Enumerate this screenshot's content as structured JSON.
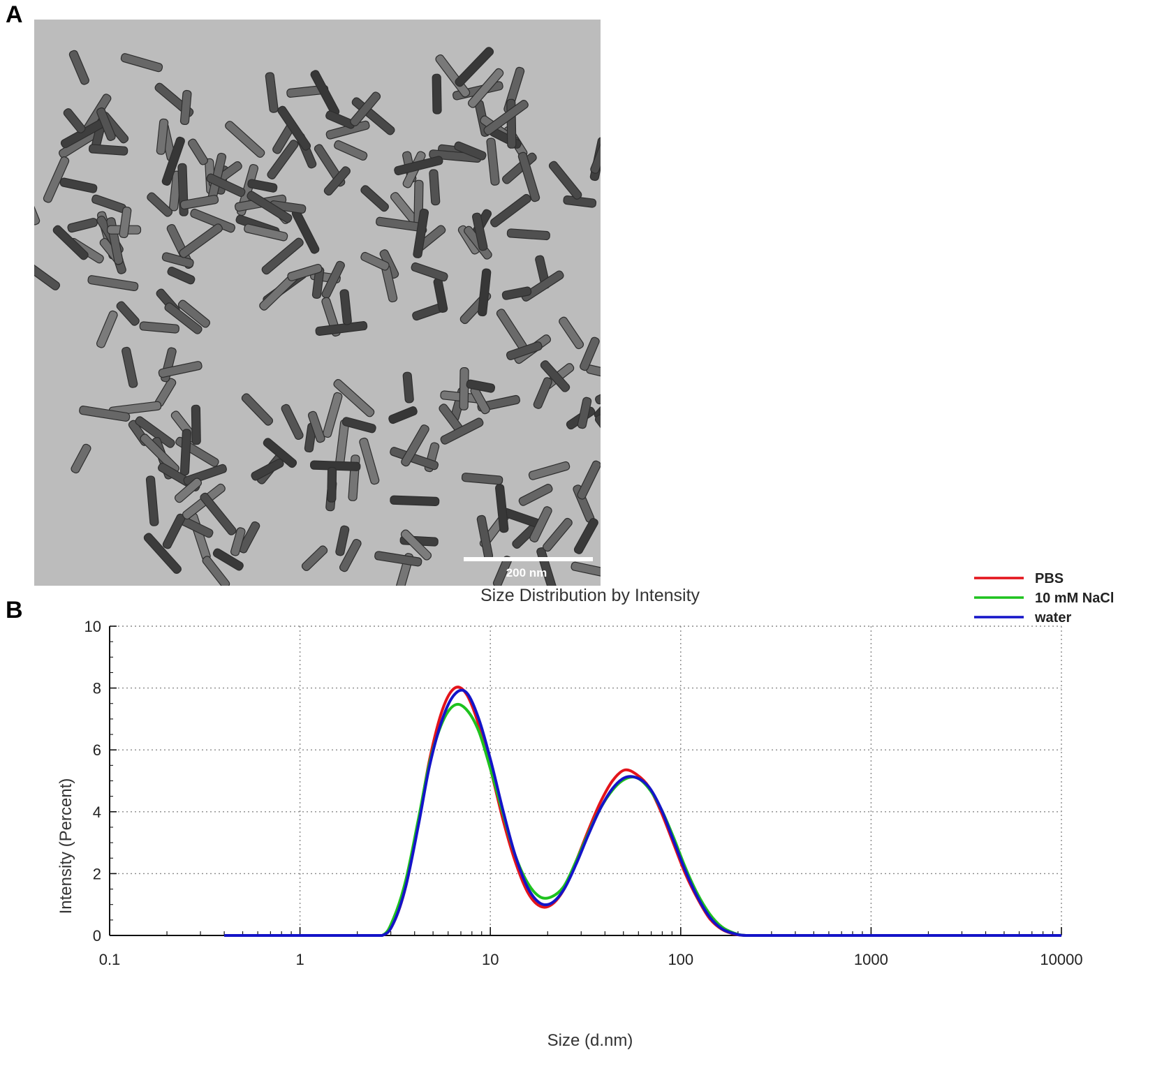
{
  "panels": {
    "a_label": "A",
    "b_label": "B"
  },
  "tem_image": {
    "scale_bar_label": "200 nm",
    "background_color": "#bcbcbc",
    "particle_color": "#4a4a4a"
  },
  "chart_data": {
    "type": "line",
    "title": "Size Distribution by Intensity",
    "xlabel": "Size (d.nm)",
    "ylabel": "Intensity (Percent)",
    "xscale": "log",
    "xlim": [
      0.1,
      10000
    ],
    "ylim": [
      0,
      10
    ],
    "xticks": [
      0.1,
      1,
      10,
      100,
      1000,
      10000
    ],
    "xtick_labels": [
      "0.1",
      "1",
      "10",
      "100",
      "1000",
      "10000"
    ],
    "yticks": [
      0,
      2,
      4,
      6,
      8,
      10
    ],
    "ytick_labels": [
      "0",
      "2",
      "4",
      "6",
      "8",
      "10"
    ],
    "grid": true,
    "legend_position": "top-right",
    "series": [
      {
        "name": "PBS",
        "color": "#e3141b",
        "x": [
          0.4,
          1,
          2,
          2.7,
          3.1,
          3.6,
          4.2,
          4.8,
          5.6,
          6.5,
          7.5,
          8.7,
          10.1,
          11.7,
          13.5,
          15.7,
          18.2,
          21,
          24.4,
          28.2,
          32.7,
          37.8,
          43.8,
          50.7,
          58.8,
          68.1,
          78.8,
          91.3,
          105.7,
          122.4,
          141.8,
          164.2,
          190.1,
          220,
          300,
          1000,
          10000
        ],
        "y": [
          0,
          0,
          0,
          0,
          0.4,
          1.6,
          3.7,
          5.7,
          7.3,
          8.0,
          7.8,
          6.8,
          5.3,
          3.7,
          2.4,
          1.4,
          0.95,
          1.0,
          1.5,
          2.4,
          3.4,
          4.3,
          5.0,
          5.35,
          5.2,
          4.8,
          4.0,
          3.0,
          2.0,
          1.2,
          0.55,
          0.2,
          0.05,
          0,
          0,
          0,
          0
        ]
      },
      {
        "name": "10 mM NaCl",
        "color": "#1ec21e",
        "x": [
          0.4,
          1,
          2,
          2.7,
          3.1,
          3.6,
          4.2,
          4.8,
          5.6,
          6.5,
          7.5,
          8.7,
          10.1,
          11.7,
          13.5,
          15.7,
          18.2,
          21,
          24.4,
          28.2,
          32.7,
          37.8,
          43.8,
          50.7,
          58.8,
          68.1,
          78.8,
          91.3,
          105.7,
          122.4,
          141.8,
          164.2,
          190.1,
          220,
          300,
          1000,
          10000
        ],
        "y": [
          0,
          0,
          0,
          0,
          0.55,
          1.8,
          3.8,
          5.6,
          6.9,
          7.45,
          7.3,
          6.6,
          5.3,
          3.9,
          2.6,
          1.7,
          1.25,
          1.25,
          1.6,
          2.4,
          3.3,
          4.1,
          4.7,
          5.05,
          5.1,
          4.75,
          4.1,
          3.2,
          2.2,
          1.35,
          0.7,
          0.28,
          0.08,
          0,
          0,
          0,
          0
        ]
      },
      {
        "name": "water",
        "color": "#1414c8",
        "x": [
          0.4,
          1,
          2,
          2.7,
          3.1,
          3.6,
          4.2,
          4.8,
          5.6,
          6.5,
          7.5,
          8.7,
          10.1,
          11.7,
          13.5,
          15.7,
          18.2,
          21,
          24.4,
          28.2,
          32.7,
          37.8,
          43.8,
          50.7,
          58.8,
          68.1,
          78.8,
          91.3,
          105.7,
          122.4,
          141.8,
          164.2,
          190.1,
          220,
          300,
          1000,
          10000
        ],
        "y": [
          0,
          0,
          0,
          0,
          0.4,
          1.6,
          3.6,
          5.5,
          7.0,
          7.8,
          7.85,
          7.0,
          5.6,
          4.0,
          2.6,
          1.55,
          1.05,
          1.05,
          1.5,
          2.3,
          3.25,
          4.1,
          4.75,
          5.1,
          5.1,
          4.8,
          4.1,
          3.1,
          2.1,
          1.25,
          0.6,
          0.22,
          0.06,
          0,
          0,
          0,
          0
        ]
      }
    ]
  }
}
